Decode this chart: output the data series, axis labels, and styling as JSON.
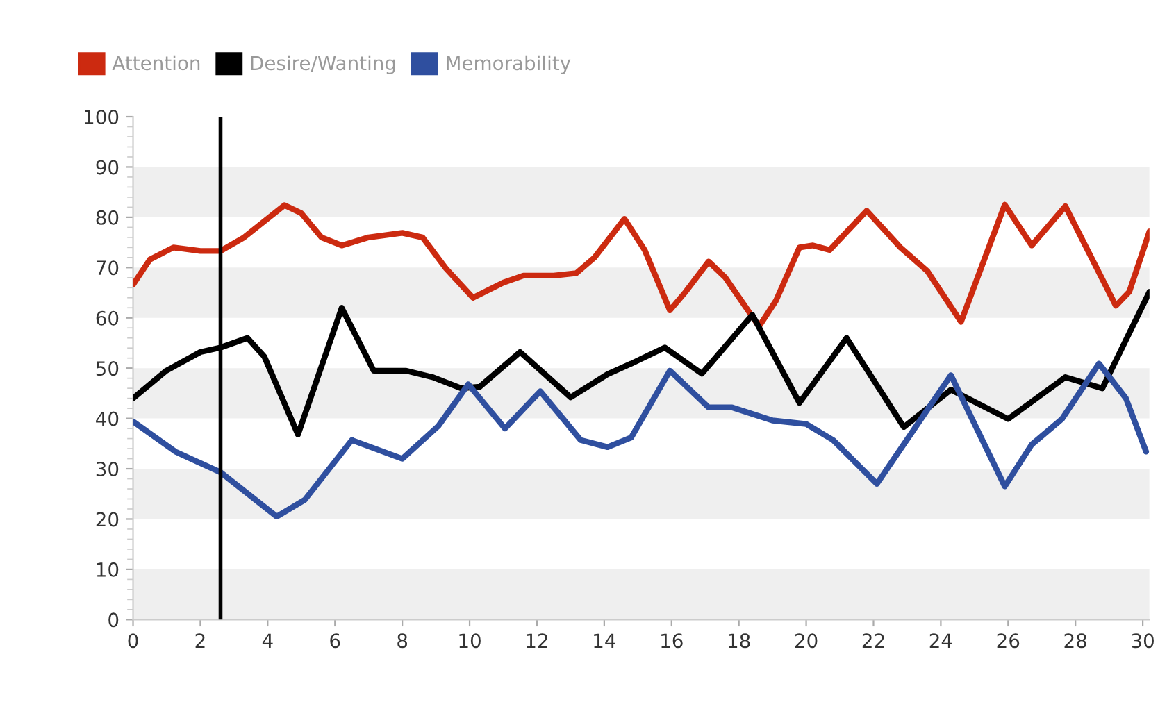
{
  "chart_data": {
    "type": "line",
    "series": [
      {
        "name": "Attention",
        "color": "#cc2a10",
        "x": [
          0,
          0.5,
          1.2,
          2,
          2.6,
          3.3,
          4.5,
          5,
          5.6,
          6.2,
          7,
          8,
          8.6,
          9.3,
          10.1,
          11,
          11.6,
          12.5,
          13.17,
          13.71,
          14.6,
          15.2,
          15.95,
          16.42,
          17.1,
          17.6,
          18.6,
          19.1,
          19.8,
          20.2,
          20.7,
          21.8,
          22.8,
          23.6,
          24.6,
          25.9,
          26.7,
          27.7,
          29.2,
          29.6,
          30.2
        ],
        "values": [
          66.6,
          71.6,
          74,
          73.3,
          73.3,
          76,
          82.4,
          80.8,
          76,
          74.4,
          76,
          76.9,
          76,
          69.8,
          64,
          67,
          68.4,
          68.4,
          68.9,
          72,
          79.7,
          73.5,
          61.5,
          65.2,
          71.2,
          68,
          58.3,
          63.4,
          74,
          74.4,
          73.5,
          81.3,
          74,
          69.3,
          59.2,
          82.5,
          74.4,
          82.2,
          62.4,
          65.2,
          77.2
        ]
      },
      {
        "name": "Desire/Wanting",
        "color": "#000000",
        "x": [
          0,
          0.99,
          2,
          2.6,
          3.4,
          3.9,
          4.9,
          6.2,
          7.15,
          8.1,
          8.9,
          9.75,
          10.3,
          11.5,
          13.0,
          14.1,
          14.8,
          15.8,
          16.9,
          18.4,
          19.8,
          21.2,
          22.9,
          24.3,
          26.0,
          27.7,
          28.8,
          30.2
        ],
        "values": [
          44,
          49.5,
          53.2,
          54.1,
          56,
          52.3,
          36.8,
          62,
          49.5,
          49.5,
          48.2,
          46,
          46.3,
          53.2,
          44.2,
          48.8,
          50.9,
          54.1,
          48.9,
          60.6,
          43.1,
          56,
          38.3,
          45.7,
          39.9,
          48.2,
          46,
          65.2
        ]
      },
      {
        "name": "Memorability",
        "color": "#2f4f9f",
        "x": [
          0,
          1.26,
          2.6,
          4.27,
          5.1,
          6.5,
          8.0,
          9.07,
          9.96,
          11.05,
          12.1,
          13.3,
          14.1,
          14.8,
          15.95,
          17.1,
          17.8,
          19.0,
          20.0,
          20.8,
          22.1,
          24.3,
          25.9,
          26.7,
          27.6,
          28.7,
          29.5,
          30.1
        ],
        "values": [
          39.4,
          33.4,
          29.3,
          20.5,
          23.8,
          35.7,
          32,
          38.5,
          46.8,
          38,
          45.4,
          35.7,
          34.3,
          36.2,
          49.5,
          42.2,
          42.2,
          39.6,
          38.9,
          35.7,
          27,
          48.6,
          26.5,
          34.8,
          39.9,
          50.9,
          44,
          33.4
        ]
      }
    ],
    "xlim": [
      0,
      30.2
    ],
    "xticks": [
      0,
      2,
      4,
      6,
      8,
      10,
      12,
      14,
      16,
      18,
      20,
      22,
      24,
      26,
      28,
      30
    ],
    "ylim": [
      0,
      100
    ],
    "yticks": [
      0,
      10,
      20,
      30,
      40,
      50,
      60,
      70,
      80,
      90,
      100
    ],
    "ref_lines": [
      {
        "axis": "x",
        "value": 2.6,
        "label": null,
        "color": "#000000"
      }
    ],
    "bands": [
      {
        "axis": "y",
        "from": 0,
        "to": 10,
        "label": null,
        "color": "#efefef"
      },
      {
        "axis": "y",
        "from": 20,
        "to": 30,
        "label": null,
        "color": "#efefef"
      },
      {
        "axis": "y",
        "from": 40,
        "to": 50,
        "label": null,
        "color": "#efefef"
      },
      {
        "axis": "y",
        "from": 60,
        "to": 70,
        "label": null,
        "color": "#efefef"
      },
      {
        "axis": "y",
        "from": 80,
        "to": 90,
        "label": null,
        "color": "#efefef"
      }
    ],
    "legend": "top left",
    "marker": "none",
    "line_style": "solid"
  }
}
